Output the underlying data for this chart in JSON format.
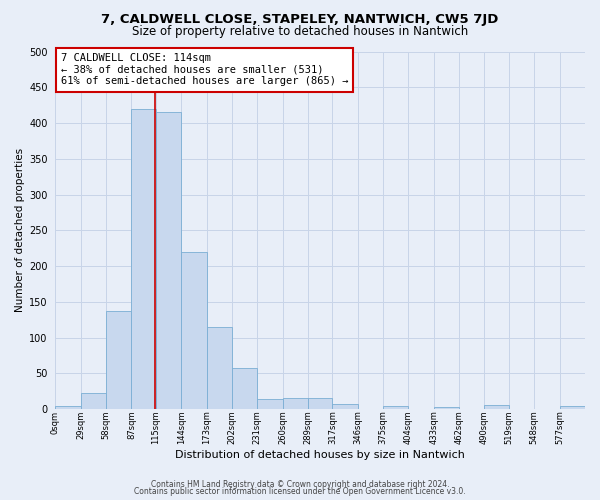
{
  "title": "7, CALDWELL CLOSE, STAPELEY, NANTWICH, CW5 7JD",
  "subtitle": "Size of property relative to detached houses in Nantwich",
  "xlabel": "Distribution of detached houses by size in Nantwich",
  "ylabel": "Number of detached properties",
  "bin_labels": [
    "0sqm",
    "29sqm",
    "58sqm",
    "87sqm",
    "115sqm",
    "144sqm",
    "173sqm",
    "202sqm",
    "231sqm",
    "260sqm",
    "289sqm",
    "317sqm",
    "346sqm",
    "375sqm",
    "404sqm",
    "433sqm",
    "462sqm",
    "490sqm",
    "519sqm",
    "548sqm",
    "577sqm"
  ],
  "bin_edges": [
    0,
    29,
    58,
    87,
    115,
    144,
    173,
    202,
    231,
    260,
    289,
    317,
    346,
    375,
    404,
    433,
    462,
    490,
    519,
    548,
    577,
    606
  ],
  "bar_heights": [
    5,
    22,
    137,
    420,
    415,
    220,
    115,
    58,
    14,
    15,
    15,
    7,
    0,
    4,
    0,
    3,
    0,
    6,
    0,
    0,
    4
  ],
  "bar_color": "#c8d8ee",
  "bar_edge_color": "#7aaed4",
  "grid_color": "#c8d4e8",
  "background_color": "#e8eef8",
  "property_line_x": 114,
  "property_line_color": "#cc0000",
  "annotation_text": "7 CALDWELL CLOSE: 114sqm\n← 38% of detached houses are smaller (531)\n61% of semi-detached houses are larger (865) →",
  "annotation_box_color": "#ffffff",
  "annotation_box_edge": "#cc0000",
  "footer_line1": "Contains HM Land Registry data © Crown copyright and database right 2024.",
  "footer_line2": "Contains public sector information licensed under the Open Government Licence v3.0.",
  "ylim": [
    0,
    500
  ],
  "yticks": [
    0,
    50,
    100,
    150,
    200,
    250,
    300,
    350,
    400,
    450,
    500
  ]
}
